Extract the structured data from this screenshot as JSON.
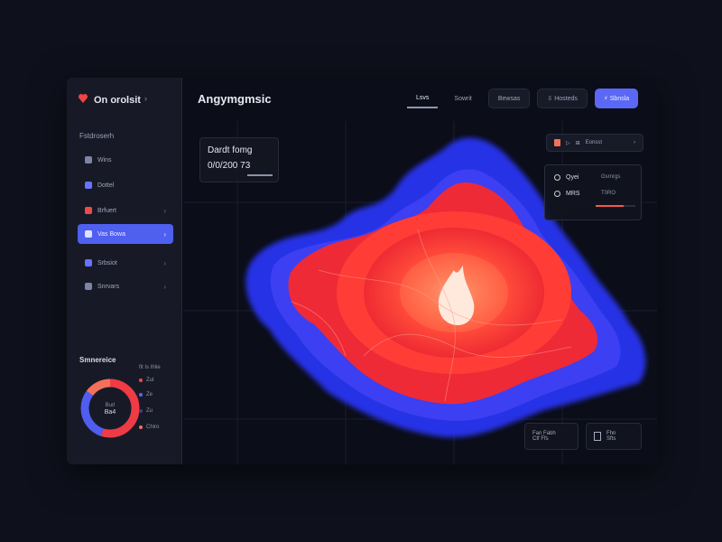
{
  "brand": {
    "name": "On orolsit",
    "caret": "›"
  },
  "sidebar": {
    "section_label": "Fstdroserh",
    "items": [
      {
        "label": "Wins",
        "icon": "grid-icon",
        "color": "#7d84a6"
      },
      {
        "label": "Dottel",
        "icon": "users-icon",
        "color": "#6873ff"
      },
      {
        "label": "Brfuert",
        "icon": "alert-icon",
        "color": "#ef4a4a"
      },
      {
        "label": "Vas Bowa",
        "icon": "map-icon",
        "color": "#dfe2ff"
      },
      {
        "label": "Srbsiot",
        "icon": "layers-icon",
        "color": "#6873ff"
      },
      {
        "label": "Snrvars",
        "icon": "settings-icon",
        "color": "#7d84a6"
      }
    ],
    "summary": {
      "title": "Smnereice",
      "center_label": "Burl",
      "center_value": "Ba4",
      "legend_header": "fit Is Ihlie",
      "legend": [
        {
          "label": "ZuI",
          "color": "#ef4a4a"
        },
        {
          "label": "Ze",
          "color": "#5a68f5"
        },
        {
          "label": "Zu",
          "color": "#3b4370"
        },
        {
          "label": "Chiro",
          "color": "#f2705b"
        }
      ],
      "segments": [
        {
          "label": "Red",
          "value": 55,
          "color": "#ee3b45"
        },
        {
          "label": "Blue",
          "value": 30,
          "color": "#4f5df0"
        },
        {
          "label": "Coral",
          "value": 15,
          "color": "#f4705a"
        }
      ]
    }
  },
  "header": {
    "title": "Angymgmsic",
    "tabs": [
      {
        "label": "Lsvs",
        "style": "active"
      },
      {
        "label": "Sowrit",
        "style": "plain"
      },
      {
        "label": "Bewsas",
        "style": "boxed"
      },
      {
        "label": "Hosteds",
        "style": "boxed",
        "icon": "download-icon"
      },
      {
        "label": "Sbnsla",
        "style": "primary",
        "icon": "bolt-icon"
      }
    ]
  },
  "map": {
    "info_card": {
      "title": "Dardt fomg",
      "value": "0/0/200 73"
    },
    "control_pill": {
      "label": "Eonsst",
      "icon": "flame-icon",
      "suffix": "›"
    },
    "stats": [
      {
        "label": "Qyei",
        "right": "Gsrnrgs",
        "icon": "clock-icon"
      },
      {
        "label": "MRS",
        "right": "T0RO",
        "icon": "target-icon"
      }
    ],
    "stats_progress": 0.7,
    "bottom_left": {
      "line1": "Fan Fabh",
      "line2": "Ctf Ffs"
    },
    "bottom_right": {
      "line1": "Fhn",
      "line2": "Sfts"
    },
    "colors": {
      "hot": "#ff3b3b",
      "core": "#ffe6d2",
      "cold": "#2a35f0",
      "accent": "#5a68f5"
    }
  }
}
